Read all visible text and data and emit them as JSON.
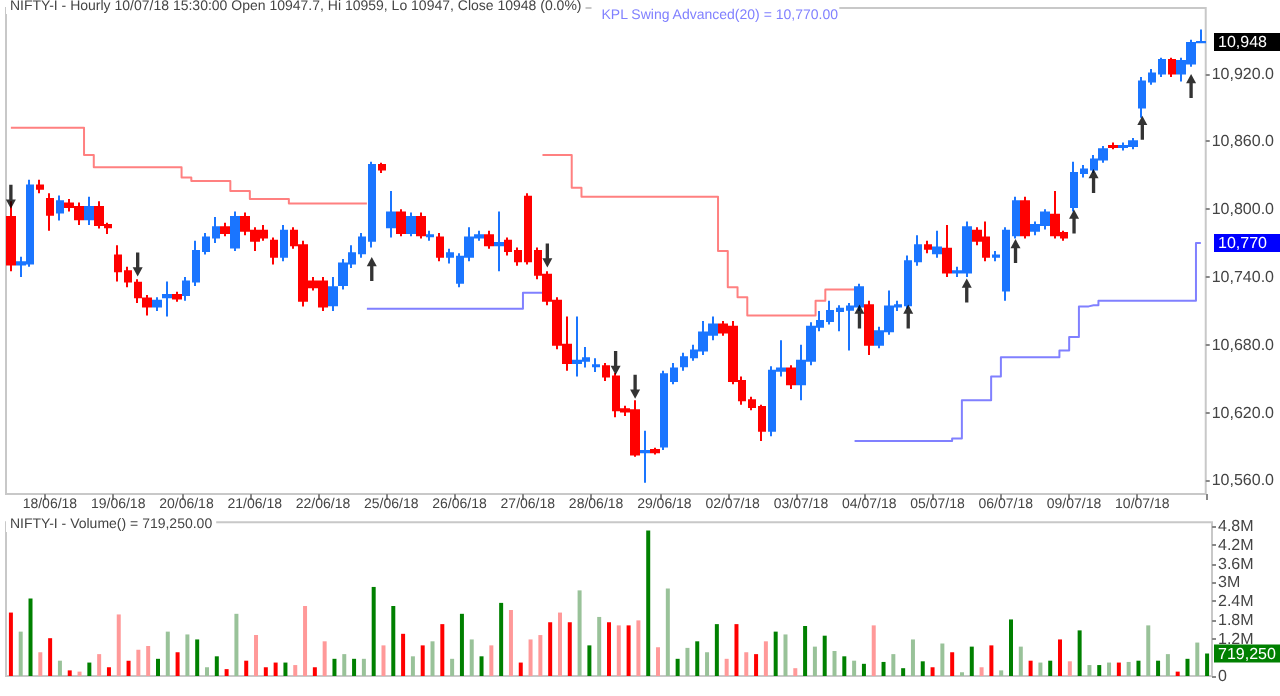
{
  "chart_data": [
    {
      "type": "candlestick",
      "title": "NIFTY-I - Hourly 10/07/18 15:30:00 Open 10947.7, Hi 10959, Lo 10947, Close 10948 (0.0%)",
      "legend": "top right",
      "categories": [
        null,
        null,
        null,
        null,
        "18/06/18",
        null,
        null,
        null,
        null,
        null,
        null,
        "19/06/18",
        null,
        null,
        null,
        null,
        null,
        null,
        "20/06/18",
        null,
        null,
        null,
        null,
        null,
        null,
        "21/06/18",
        null,
        null,
        null,
        null,
        null,
        null,
        "22/06/18",
        null,
        null,
        null,
        null,
        null,
        null,
        "25/06/18",
        null,
        null,
        null,
        null,
        null,
        null,
        "26/06/18",
        null,
        null,
        null,
        null,
        null,
        null,
        "27/06/18",
        null,
        null,
        null,
        null,
        null,
        null,
        "28/06/18",
        null,
        null,
        null,
        null,
        null,
        null,
        "29/06/18",
        null,
        null,
        null,
        null,
        null,
        null,
        "02/07/18",
        null,
        null,
        null,
        null,
        null,
        null,
        "03/07/18",
        null,
        null,
        null,
        null,
        null,
        null,
        "04/07/18",
        null,
        null,
        null,
        null,
        null,
        null,
        "05/07/18",
        null,
        null,
        null,
        null,
        null,
        null,
        "06/07/18",
        null,
        null,
        null,
        null,
        null,
        null,
        "09/07/18",
        null,
        null,
        null,
        null,
        null,
        null,
        "10/07/18",
        null,
        null,
        null,
        null,
        null,
        null
      ],
      "ylim": [
        10548,
        10978
      ],
      "yticks": [
        {
          "value": 10560,
          "label": "10,560.0"
        },
        {
          "value": 10620,
          "label": "10,620.0"
        },
        {
          "value": 10680,
          "label": "10,680.0"
        },
        {
          "value": 10740,
          "label": "10,740.0"
        },
        {
          "value": 10800,
          "label": "10,800.0"
        },
        {
          "value": 10860,
          "label": "10,860.0"
        },
        {
          "value": 10920,
          "label": "10,920.0"
        }
      ],
      "annotations": [
        "10,948",
        "10,770"
      ],
      "ohlc": [
        [
          10793,
          10807,
          10745,
          10751
        ],
        [
          10751,
          10758,
          10740,
          10753
        ],
        [
          10752,
          10826,
          10749,
          10821
        ],
        [
          10821,
          10826,
          10814,
          10818
        ],
        [
          10809,
          10814,
          10781,
          10795
        ],
        [
          10797,
          10812,
          10790,
          10807
        ],
        [
          10805,
          10809,
          10798,
          10802
        ],
        [
          10802,
          10806,
          10786,
          10791
        ],
        [
          10791,
          10811,
          10786,
          10802
        ],
        [
          10802,
          10807,
          10783,
          10786
        ],
        [
          10786,
          10788,
          10778,
          10784
        ],
        [
          10759,
          10768,
          10736,
          10745
        ],
        [
          10745,
          10749,
          10731,
          10736
        ],
        [
          10735,
          10738,
          10717,
          10722
        ],
        [
          10721,
          10724,
          10706,
          10714
        ],
        [
          10714,
          10722,
          10710,
          10719
        ],
        [
          10722,
          10736,
          10705,
          10724
        ],
        [
          10724,
          10727,
          10718,
          10721
        ],
        [
          10724,
          10740,
          10719,
          10736
        ],
        [
          10736,
          10772,
          10732,
          10763
        ],
        [
          10763,
          10779,
          10760,
          10775
        ],
        [
          10775,
          10793,
          10770,
          10784
        ],
        [
          10784,
          10788,
          10776,
          10779
        ],
        [
          10766,
          10798,
          10763,
          10793
        ],
        [
          10793,
          10797,
          10777,
          10781
        ],
        [
          10781,
          10784,
          10763,
          10772
        ],
        [
          10781,
          10786,
          10772,
          10775
        ],
        [
          10772,
          10775,
          10751,
          10758
        ],
        [
          10758,
          10786,
          10754,
          10781
        ],
        [
          10781,
          10784,
          10765,
          10768
        ],
        [
          10768,
          10772,
          10714,
          10719
        ],
        [
          10736,
          10740,
          10728,
          10731
        ],
        [
          10736,
          10740,
          10710,
          10714
        ],
        [
          10715,
          10740,
          10710,
          10731
        ],
        [
          10733,
          10756,
          10729,
          10752
        ],
        [
          10752,
          10768,
          10748,
          10761
        ],
        [
          10761,
          10779,
          10757,
          10775
        ],
        [
          10772,
          10842,
          10766,
          10839
        ],
        [
          10839,
          10841,
          10832,
          10835
        ],
        [
          10784,
          10816,
          10775,
          10797
        ],
        [
          10797,
          10800,
          10776,
          10779
        ],
        [
          10779,
          10797,
          10776,
          10793
        ],
        [
          10793,
          10797,
          10774,
          10777
        ],
        [
          10776,
          10781,
          10772,
          10777
        ],
        [
          10775,
          10779,
          10754,
          10758
        ],
        [
          10758,
          10765,
          10752,
          10761
        ],
        [
          10735,
          10761,
          10731,
          10758
        ],
        [
          10758,
          10784,
          10754,
          10775
        ],
        [
          10775,
          10781,
          10772,
          10777
        ],
        [
          10777,
          10781,
          10765,
          10768
        ],
        [
          10768,
          10798,
          10745,
          10770
        ],
        [
          10772,
          10775,
          10759,
          10763
        ],
        [
          10763,
          10766,
          10750,
          10754
        ],
        [
          10811,
          10814,
          10751,
          10754
        ],
        [
          10763,
          10766,
          10738,
          10742
        ],
        [
          10742,
          10745,
          10715,
          10719
        ],
        [
          10719,
          10722,
          10676,
          10680
        ],
        [
          10680,
          10705,
          10657,
          10664
        ],
        [
          10664,
          10705,
          10652,
          10666
        ],
        [
          10666,
          10678,
          10660,
          10668
        ],
        [
          10661,
          10668,
          10656,
          10662
        ],
        [
          10661,
          10664,
          10648,
          10652
        ],
        [
          10652,
          10655,
          10616,
          10622
        ],
        [
          10623,
          10626,
          10617,
          10621
        ],
        [
          10622,
          10631,
          10581,
          10583
        ],
        [
          10585,
          10604,
          10558,
          10586
        ],
        [
          10587,
          10589,
          10583,
          10585
        ],
        [
          10590,
          10657,
          10587,
          10654
        ],
        [
          10648,
          10664,
          10645,
          10659
        ],
        [
          10661,
          10673,
          10657,
          10669
        ],
        [
          10669,
          10680,
          10666,
          10675
        ],
        [
          10675,
          10701,
          10671,
          10691
        ],
        [
          10689,
          10705,
          10684,
          10698
        ],
        [
          10698,
          10701,
          10688,
          10691
        ],
        [
          10696,
          10701,
          10645,
          10648
        ],
        [
          10648,
          10652,
          10627,
          10631
        ],
        [
          10631,
          10634,
          10622,
          10625
        ],
        [
          10625,
          10627,
          10595,
          10604
        ],
        [
          10604,
          10661,
          10599,
          10657
        ],
        [
          10657,
          10684,
          10652,
          10659
        ],
        [
          10659,
          10662,
          10641,
          10645
        ],
        [
          10645,
          10680,
          10631,
          10666
        ],
        [
          10666,
          10700,
          10662,
          10696
        ],
        [
          10696,
          10710,
          10692,
          10701
        ],
        [
          10701,
          10719,
          10698,
          10710
        ],
        [
          10710,
          10715,
          10692,
          10712
        ],
        [
          10711,
          10717,
          10675,
          10714
        ],
        [
          10714,
          10734,
          10710,
          10731
        ],
        [
          10715,
          10719,
          10671,
          10680
        ],
        [
          10680,
          10696,
          10677,
          10692
        ],
        [
          10692,
          10728,
          10689,
          10714
        ],
        [
          10714,
          10719,
          10710,
          10715
        ],
        [
          10715,
          10759,
          10712,
          10754
        ],
        [
          10754,
          10777,
          10750,
          10768
        ],
        [
          10768,
          10772,
          10761,
          10765
        ],
        [
          10761,
          10781,
          10757,
          10766
        ],
        [
          10765,
          10786,
          10740,
          10744
        ],
        [
          10744,
          10749,
          10740,
          10745
        ],
        [
          10744,
          10789,
          10740,
          10784
        ],
        [
          10781,
          10784,
          10768,
          10772
        ],
        [
          10775,
          10789,
          10754,
          10758
        ],
        [
          10758,
          10763,
          10754,
          10759
        ],
        [
          10728,
          10784,
          10719,
          10781
        ],
        [
          10777,
          10811,
          10774,
          10807
        ],
        [
          10807,
          10811,
          10774,
          10777
        ],
        [
          10781,
          10789,
          10777,
          10786
        ],
        [
          10786,
          10800,
          10782,
          10797
        ],
        [
          10795,
          10816,
          10774,
          10777
        ],
        [
          10779,
          10781,
          10772,
          10775
        ],
        [
          10802,
          10842,
          10798,
          10832
        ],
        [
          10832,
          10839,
          10828,
          10835
        ],
        [
          10835,
          10848,
          10832,
          10844
        ],
        [
          10844,
          10856,
          10841,
          10853
        ],
        [
          10856,
          10859,
          10853,
          10855
        ],
        [
          10855,
          10859,
          10852,
          10856
        ],
        [
          10856,
          10863,
          10853,
          10860
        ],
        [
          10890,
          10917,
          10881,
          10913
        ],
        [
          10913,
          10924,
          10910,
          10920
        ],
        [
          10920,
          10934,
          10917,
          10932
        ],
        [
          10932,
          10934,
          10917,
          10920
        ],
        [
          10920,
          10934,
          10913,
          10931
        ],
        [
          10929,
          10950,
          10926,
          10947
        ],
        [
          10947.7,
          10959,
          10947,
          10948
        ]
      ],
      "colors": [
        "#ff0000",
        "#1a75ff",
        "#1a75ff",
        "#ff0000",
        "#ff0000",
        "#1a75ff",
        "#ff0000",
        "#ff0000",
        "#1a75ff",
        "#ff0000",
        "#ff0000",
        "#ff0000",
        "#ff0000",
        "#ff0000",
        "#ff0000",
        "#1a75ff",
        "#1a75ff",
        "#ff0000",
        "#1a75ff",
        "#1a75ff",
        "#1a75ff",
        "#1a75ff",
        "#ff0000",
        "#1a75ff",
        "#ff0000",
        "#ff0000",
        "#ff0000",
        "#ff0000",
        "#1a75ff",
        "#ff0000",
        "#ff0000",
        "#ff0000",
        "#ff0000",
        "#1a75ff",
        "#1a75ff",
        "#1a75ff",
        "#1a75ff",
        "#1a75ff",
        "#ff0000",
        "#1a75ff",
        "#ff0000",
        "#1a75ff",
        "#ff0000",
        "#1a75ff",
        "#ff0000",
        "#1a75ff",
        "#1a75ff",
        "#1a75ff",
        "#1a75ff",
        "#ff0000",
        "#1a75ff",
        "#ff0000",
        "#ff0000",
        "#ff0000",
        "#ff0000",
        "#ff0000",
        "#ff0000",
        "#ff0000",
        "#1a75ff",
        "#1a75ff",
        "#1a75ff",
        "#ff0000",
        "#ff0000",
        "#ff0000",
        "#ff0000",
        "#1a75ff",
        "#ff0000",
        "#1a75ff",
        "#1a75ff",
        "#1a75ff",
        "#1a75ff",
        "#1a75ff",
        "#1a75ff",
        "#ff0000",
        "#ff0000",
        "#ff0000",
        "#ff0000",
        "#ff0000",
        "#1a75ff",
        "#1a75ff",
        "#ff0000",
        "#1a75ff",
        "#1a75ff",
        "#1a75ff",
        "#1a75ff",
        "#1a75ff",
        "#1a75ff",
        "#1a75ff",
        "#ff0000",
        "#1a75ff",
        "#1a75ff",
        "#1a75ff",
        "#1a75ff",
        "#1a75ff",
        "#ff0000",
        "#1a75ff",
        "#ff0000",
        "#1a75ff",
        "#1a75ff",
        "#ff0000",
        "#ff0000",
        "#1a75ff",
        "#1a75ff",
        "#1a75ff",
        "#ff0000",
        "#1a75ff",
        "#1a75ff",
        "#ff0000",
        "#ff0000",
        "#1a75ff",
        "#1a75ff",
        "#1a75ff",
        "#1a75ff",
        "#ff0000",
        "#1a75ff",
        "#1a75ff",
        "#1a75ff",
        "#1a75ff",
        "#1a75ff",
        "#ff0000",
        "#1a75ff",
        "#1a75ff",
        "#1a75ff"
      ],
      "series": [
        {
          "type": "step",
          "name": "KPL Swing Advanced(20) = 10,770.00",
          "color": "#8080ff",
          "values": [
            null,
            null,
            null,
            null,
            null,
            null,
            null,
            null,
            null,
            null,
            null,
            null,
            null,
            null,
            null,
            null,
            null,
            null,
            null,
            null,
            null,
            null,
            null,
            null,
            null,
            null,
            null,
            null,
            null,
            null,
            null,
            null,
            null,
            null,
            null,
            null,
            null,
            10712,
            10712,
            10712,
            10712,
            10712,
            10712,
            10712,
            10712,
            10712,
            10712,
            10712,
            10712,
            10712,
            10712,
            10712,
            10712,
            10726,
            10726,
            null,
            null,
            null,
            null,
            null,
            null,
            null,
            null,
            null,
            null,
            null,
            null,
            null,
            null,
            null,
            null,
            null,
            null,
            null,
            null,
            null,
            null,
            null,
            null,
            null,
            null,
            null,
            null,
            null,
            null,
            null,
            null,
            10595,
            10595,
            10595,
            10595,
            10595,
            10595,
            10595,
            10595,
            10595,
            10595,
            10597,
            10631,
            10631,
            10631,
            10652,
            10669,
            10669,
            10669,
            10669,
            10669,
            10669,
            10675,
            10687,
            10714,
            10715,
            10719,
            10719,
            10719,
            10719,
            10719,
            10719,
            10719,
            10719,
            10719,
            10719,
            10770
          ]
        },
        {
          "type": "step",
          "color": "#ff8080",
          "values": [
            10872,
            10872,
            10872,
            10872,
            10872,
            10872,
            10872,
            10872,
            10848,
            10837,
            10837,
            10837,
            10837,
            10837,
            10837,
            10837,
            10837,
            10837,
            10828,
            10825,
            10825,
            10825,
            10825,
            10816,
            10816,
            10809,
            10809,
            10809,
            10809,
            10805,
            10805,
            10805,
            10805,
            10805,
            10805,
            10805,
            10805,
            null,
            null,
            null,
            null,
            null,
            null,
            null,
            null,
            null,
            null,
            null,
            null,
            null,
            null,
            null,
            null,
            null,
            null,
            10848,
            10848,
            10848,
            10819,
            10811,
            10811,
            10811,
            10811,
            10811,
            10811,
            10811,
            10811,
            10811,
            10811,
            10811,
            10811,
            10811,
            10811,
            10763,
            10731,
            10722,
            10706,
            10706,
            10706,
            10706,
            10706,
            10706,
            10706,
            10719,
            10729,
            10729,
            10729,
            null,
            null,
            null,
            null,
            null,
            null,
            null,
            null,
            null,
            null,
            null,
            null,
            null,
            null,
            null,
            null,
            null,
            null,
            null,
            null,
            null,
            null,
            null,
            null,
            null,
            null,
            null,
            null,
            null,
            null,
            null,
            null,
            null,
            null,
            null,
            null
          ]
        },
        {
          "type": "scatter",
          "color": "#000000",
          "marker": "triangle",
          "values": [
            10811,
            null,
            null,
            null,
            null,
            null,
            null,
            null,
            null,
            null,
            null,
            null,
            null,
            10751,
            null,
            null,
            null,
            null,
            null,
            null,
            null,
            null,
            null,
            null,
            null,
            null,
            null,
            null,
            null,
            null,
            null,
            null,
            null,
            null,
            null,
            null,
            null,
            10747,
            null,
            null,
            null,
            null,
            null,
            null,
            null,
            null,
            null,
            null,
            null,
            null,
            null,
            null,
            null,
            null,
            null,
            10759,
            null,
            null,
            null,
            null,
            null,
            null,
            10664,
            null,
            10643,
            null,
            null,
            null,
            null,
            null,
            null,
            null,
            null,
            null,
            null,
            null,
            null,
            null,
            null,
            null,
            null,
            null,
            null,
            null,
            null,
            null,
            null,
            10705,
            null,
            null,
            null,
            null,
            10705,
            null,
            null,
            null,
            null,
            null,
            10728,
            null,
            null,
            null,
            null,
            10763,
            null,
            null,
            null,
            null,
            null,
            10789,
            null,
            10825,
            null,
            null,
            null,
            null,
            10872,
            null,
            null,
            null,
            null,
            10909,
            null
          ]
        }
      ]
    },
    {
      "type": "bar",
      "title": "NIFTY-I - Volume() = 719,250.00",
      "tick_labels": "y",
      "categories": [
        null,
        null,
        null,
        null,
        null,
        null,
        null,
        null,
        null,
        null,
        null,
        null,
        null,
        null,
        null,
        null,
        null,
        null,
        null,
        null,
        null,
        null,
        null,
        null,
        null,
        null,
        null,
        null,
        null,
        null,
        null,
        null,
        null,
        null,
        null,
        null,
        null,
        null,
        null,
        null,
        null,
        null,
        null,
        null,
        null,
        null,
        null,
        null,
        null,
        null,
        null,
        null,
        null,
        null,
        null,
        null,
        null,
        null,
        null,
        null,
        null,
        null,
        null,
        null,
        null,
        null,
        null,
        null,
        null,
        null,
        null,
        null,
        null,
        null,
        null,
        null,
        null,
        null,
        null,
        null,
        null,
        null,
        null,
        null,
        null,
        null,
        null,
        null,
        null,
        null,
        null,
        null,
        null,
        null,
        null,
        null,
        null,
        null,
        null,
        null,
        null,
        null,
        null,
        null,
        null,
        null,
        null,
        null,
        null,
        null,
        null,
        null,
        null,
        null,
        null,
        null,
        null,
        null,
        null,
        null,
        null,
        null,
        null
      ],
      "ylim": [
        0,
        4.92
      ],
      "yticks": [
        {
          "value": 0,
          "label": "0"
        },
        {
          "value": 1.2,
          "label": "1.2M"
        },
        {
          "value": 1.8,
          "label": "1.8M"
        },
        {
          "value": 2.4,
          "label": "2.4M"
        },
        {
          "value": 3,
          "label": "3M"
        },
        {
          "value": 3.6,
          "label": "3.6M"
        },
        {
          "value": 4.2,
          "label": "4.2M"
        },
        {
          "value": 4.8,
          "label": "4.8M"
        }
      ],
      "annotations": [
        "719,250"
      ],
      "values": [
        2.03,
        1.42,
        2.48,
        0.76,
        1.21,
        0.49,
        0.18,
        0.14,
        0.43,
        0.7,
        0.28,
        1.97,
        0.49,
        0.84,
        0.96,
        0.55,
        1.42,
        0.76,
        1.33,
        1.17,
        0.28,
        0.63,
        0.22,
        1.99,
        0.49,
        1.31,
        0.28,
        0.43,
        0.43,
        0.35,
        2.24,
        0.28,
        1.11,
        0.55,
        0.7,
        0.55,
        0.55,
        2.85,
        0.98,
        2.24,
        1.35,
        0.63,
        0.98,
        1.11,
        1.66,
        0.55,
        1.99,
        1.17,
        0.63,
        0.98,
        2.34,
        2.11,
        0.43,
        1.17,
        1.31,
        1.72,
        2.03,
        1.72,
        2.74,
        0.98,
        1.89,
        1.72,
        1.62,
        1.62,
        1.78,
        4.66,
        0.92,
        2.8,
        0.55,
        0.9,
        1.11,
        0.76,
        1.66,
        0.55,
        1.66,
        0.76,
        0.7,
        1.11,
        1.42,
        1.33,
        0.25,
        1.6,
        0.94,
        1.29,
        0.8,
        0.63,
        0.49,
        0.39,
        1.62,
        0.45,
        0.7,
        0.25,
        1.17,
        0.47,
        0.28,
        1.04,
        0.76,
        0.12,
        0.94,
        0.28,
        0.98,
        0.18,
        1.81,
        0.94,
        0.49,
        0.43,
        0.49,
        1.17,
        0.47,
        1.46,
        0.35,
        0.35,
        0.43,
        0.43,
        0.45,
        0.49,
        1.62,
        0.49,
        0.7,
        0.14,
        0.55,
        1.07,
        0.72
      ],
      "colors": [
        "#ff0000",
        "#99c299",
        "#008000",
        "#ff9999",
        "#ff0000",
        "#99c299",
        "#ff0000",
        "#ff9999",
        "#008000",
        "#ff9999",
        "#ff0000",
        "#ff9999",
        "#ff0000",
        "#ff9999",
        "#ff9999",
        "#008000",
        "#99c299",
        "#ff0000",
        "#99c299",
        "#008000",
        "#99c299",
        "#008000",
        "#ff0000",
        "#99c299",
        "#ff0000",
        "#ff9999",
        "#ff0000",
        "#ff0000",
        "#008000",
        "#ff9999",
        "#ff9999",
        "#ff0000",
        "#ff9999",
        "#008000",
        "#99c299",
        "#008000",
        "#99c299",
        "#008000",
        "#ff9999",
        "#008000",
        "#ff0000",
        "#99c299",
        "#ff0000",
        "#99c299",
        "#ff0000",
        "#99c299",
        "#008000",
        "#99c299",
        "#008000",
        "#ff9999",
        "#008000",
        "#ff9999",
        "#ff0000",
        "#ff9999",
        "#ff9999",
        "#ff0000",
        "#ff9999",
        "#ff0000",
        "#99c299",
        "#008000",
        "#99c299",
        "#ff0000",
        "#ff9999",
        "#ff0000",
        "#ff9999",
        "#008000",
        "#ff9999",
        "#99c299",
        "#008000",
        "#99c299",
        "#008000",
        "#99c299",
        "#008000",
        "#ff9999",
        "#ff0000",
        "#ff9999",
        "#ff0000",
        "#ff9999",
        "#008000",
        "#99c299",
        "#ff9999",
        "#008000",
        "#99c299",
        "#008000",
        "#99c299",
        "#008000",
        "#99c299",
        "#008000",
        "#ff9999",
        "#008000",
        "#99c299",
        "#008000",
        "#99c299",
        "#008000",
        "#ff0000",
        "#99c299",
        "#ff0000",
        "#99c299",
        "#008000",
        "#ff9999",
        "#ff0000",
        "#99c299",
        "#008000",
        "#99c299",
        "#ff0000",
        "#99c299",
        "#008000",
        "#ff0000",
        "#ff9999",
        "#008000",
        "#99c299",
        "#008000",
        "#99c299",
        "#ff0000",
        "#99c299",
        "#008000",
        "#99c299",
        "#008000",
        "#99c299",
        "#ff0000",
        "#008000",
        "#99c299",
        "#008000"
      ]
    }
  ]
}
